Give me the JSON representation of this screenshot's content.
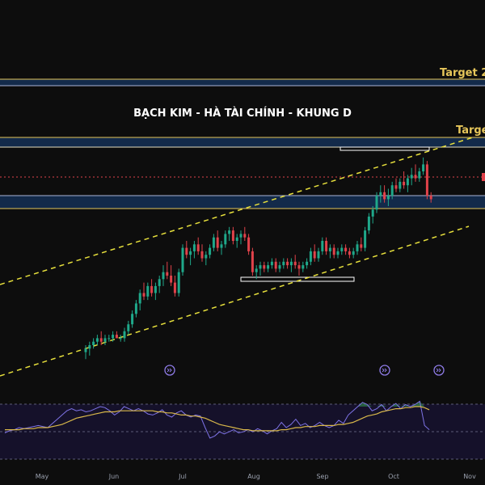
{
  "chart_data": {
    "type": "candlestick",
    "title": "BẠCH KIM - HÀ TÀI CHÍNH - KHUNG D",
    "x_ticks": [
      "May",
      "Jun",
      "Jul",
      "Aug",
      "Sep",
      "Oct",
      "Nov"
    ],
    "annotations": [
      "Target 2",
      "Target"
    ],
    "grid": false,
    "colors": {
      "background": "#0d0d0d",
      "up": "#1fa88a",
      "down": "#e0424a",
      "target_line": "#e6c65a",
      "zone": "#132a4a",
      "trendline": "#e6df3c",
      "rsi": "#7e73e6",
      "rsi_ma": "#d9b84a"
    },
    "candles": [
      [
        68,
        70,
        66,
        69
      ],
      [
        69,
        71,
        67,
        70
      ],
      [
        70,
        72,
        69,
        71
      ],
      [
        71,
        73,
        70,
        72
      ],
      [
        72,
        74,
        70,
        71
      ],
      [
        71,
        73,
        70,
        72
      ],
      [
        72,
        73,
        71,
        72
      ],
      [
        72,
        74,
        71,
        73
      ],
      [
        73,
        74,
        72,
        72
      ],
      [
        72,
        73,
        71,
        72
      ],
      [
        72,
        75,
        71,
        74
      ],
      [
        74,
        77,
        73,
        76
      ],
      [
        76,
        80,
        75,
        79
      ],
      [
        79,
        83,
        78,
        82
      ],
      [
        82,
        86,
        80,
        85
      ],
      [
        85,
        88,
        83,
        84
      ],
      [
        84,
        88,
        83,
        87
      ],
      [
        87,
        89,
        84,
        85
      ],
      [
        85,
        88,
        83,
        87
      ],
      [
        87,
        90,
        85,
        89
      ],
      [
        89,
        93,
        87,
        91
      ],
      [
        91,
        94,
        89,
        90
      ],
      [
        90,
        93,
        87,
        88
      ],
      [
        88,
        90,
        84,
        85
      ],
      [
        85,
        92,
        84,
        91
      ],
      [
        91,
        99,
        90,
        98
      ],
      [
        98,
        100,
        95,
        96
      ],
      [
        96,
        98,
        93,
        97
      ],
      [
        97,
        100,
        95,
        99
      ],
      [
        99,
        101,
        96,
        97
      ],
      [
        97,
        99,
        94,
        95
      ],
      [
        95,
        97,
        93,
        96
      ],
      [
        96,
        99,
        95,
        98
      ],
      [
        98,
        102,
        97,
        101
      ],
      [
        101,
        103,
        97,
        98
      ],
      [
        98,
        100,
        96,
        99
      ],
      [
        99,
        103,
        98,
        102
      ],
      [
        102,
        104,
        100,
        103
      ],
      [
        103,
        104,
        99,
        100
      ],
      [
        100,
        102,
        98,
        101
      ],
      [
        101,
        103,
        99,
        102
      ],
      [
        102,
        104,
        100,
        101
      ],
      [
        101,
        102,
        96,
        97
      ],
      [
        97,
        98,
        90,
        91
      ],
      [
        91,
        93,
        89,
        92
      ],
      [
        92,
        94,
        90,
        93
      ],
      [
        93,
        94,
        91,
        92
      ],
      [
        92,
        94,
        91,
        93
      ],
      [
        93,
        95,
        92,
        94
      ],
      [
        94,
        95,
        91,
        92
      ],
      [
        92,
        94,
        91,
        93
      ],
      [
        93,
        95,
        92,
        94
      ],
      [
        94,
        95,
        92,
        93
      ],
      [
        93,
        95,
        91,
        94
      ],
      [
        94,
        96,
        92,
        93
      ],
      [
        93,
        94,
        90,
        92
      ],
      [
        92,
        94,
        91,
        93
      ],
      [
        93,
        95,
        92,
        94
      ],
      [
        94,
        98,
        93,
        97
      ],
      [
        97,
        99,
        94,
        95
      ],
      [
        95,
        98,
        94,
        97
      ],
      [
        97,
        101,
        96,
        100
      ],
      [
        100,
        101,
        96,
        97
      ],
      [
        97,
        99,
        95,
        98
      ],
      [
        98,
        99,
        95,
        96
      ],
      [
        96,
        98,
        95,
        97
      ],
      [
        97,
        99,
        96,
        98
      ],
      [
        98,
        99,
        96,
        97
      ],
      [
        97,
        98,
        95,
        96
      ],
      [
        96,
        98,
        95,
        97
      ],
      [
        97,
        100,
        96,
        99
      ],
      [
        99,
        101,
        97,
        98
      ],
      [
        98,
        104,
        97,
        103
      ],
      [
        103,
        108,
        102,
        107
      ],
      [
        107,
        110,
        105,
        109
      ],
      [
        109,
        114,
        108,
        113
      ],
      [
        113,
        116,
        111,
        114
      ],
      [
        114,
        116,
        111,
        112
      ],
      [
        112,
        115,
        110,
        113
      ],
      [
        113,
        117,
        112,
        116
      ],
      [
        116,
        118,
        114,
        115
      ],
      [
        115,
        118,
        114,
        117
      ],
      [
        117,
        120,
        115,
        116
      ],
      [
        116,
        119,
        114,
        118
      ],
      [
        118,
        121,
        116,
        119
      ],
      [
        119,
        122,
        117,
        118
      ],
      [
        118,
        121,
        117,
        120
      ],
      [
        120,
        124,
        119,
        122
      ],
      [
        122,
        123,
        112,
        113
      ],
      [
        113,
        114,
        111,
        112
      ]
    ],
    "rsi": [
      45,
      47,
      48,
      50,
      49,
      50,
      51,
      52,
      51,
      50,
      54,
      58,
      62,
      66,
      68,
      66,
      67,
      65,
      66,
      68,
      70,
      69,
      66,
      62,
      65,
      70,
      68,
      66,
      68,
      66,
      63,
      62,
      64,
      67,
      62,
      60,
      64,
      66,
      62,
      60,
      62,
      61,
      50,
      40,
      42,
      46,
      44,
      46,
      48,
      45,
      46,
      48,
      46,
      49,
      47,
      44,
      47,
      49,
      55,
      50,
      53,
      58,
      52,
      54,
      50,
      52,
      55,
      52,
      50,
      52,
      57,
      54,
      62,
      66,
      70,
      74,
      72,
      66,
      68,
      72,
      66,
      70,
      73,
      68,
      72,
      70,
      72,
      75,
      52,
      48
    ],
    "rsi_ma": [
      48,
      48,
      48,
      48,
      49,
      49,
      49,
      50,
      50,
      50,
      51,
      52,
      53,
      55,
      57,
      59,
      60,
      61,
      62,
      63,
      64,
      65,
      65,
      65,
      66,
      66,
      66,
      66,
      66,
      66,
      66,
      66,
      65,
      65,
      64,
      64,
      63,
      62,
      62,
      61,
      61,
      60,
      59,
      57,
      55,
      53,
      52,
      51,
      50,
      49,
      48,
      48,
      47,
      47,
      47,
      47,
      47,
      47,
      48,
      48,
      49,
      50,
      50,
      51,
      51,
      51,
      52,
      52,
      52,
      52,
      53,
      53,
      54,
      55,
      57,
      59,
      61,
      62,
      63,
      65,
      66,
      67,
      68,
      68,
      69,
      69,
      70,
      70,
      69,
      67
    ]
  }
}
